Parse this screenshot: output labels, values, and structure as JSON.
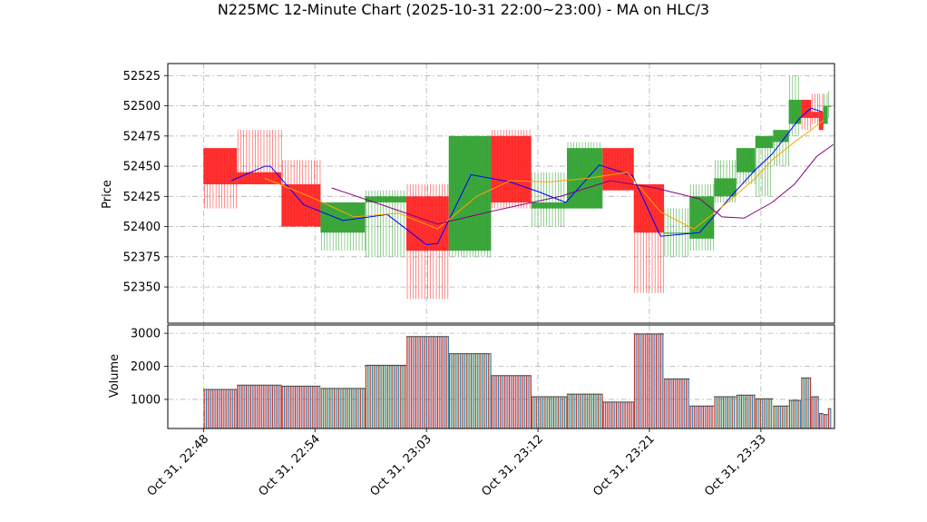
{
  "title": "N225MC 12-Minute Chart (2025-10-31 22:00~23:00) - MA on HLC/3",
  "colors": {
    "up": "#2ca02c",
    "down": "#ff2020",
    "ma_short": "#0000ff",
    "ma_mid": "#ffa500",
    "ma_long": "#800080",
    "vol_stripe_a": "#c0392b",
    "vol_stripe_b": "#2e86c1",
    "grid": "#b0b0b0"
  },
  "chart_data": [
    {
      "type": "candlestick",
      "ylabel": "Price",
      "ylim": [
        52320,
        52535
      ],
      "yticks": [
        52350,
        52375,
        52400,
        52425,
        52450,
        52475,
        52500,
        52525
      ],
      "xlim": [
        -3.2,
        56.6
      ],
      "grid": true,
      "bars": [
        {
          "x0": 0,
          "x1": 3,
          "o": 52465,
          "h": 52465,
          "l": 52415,
          "c": 52435
        },
        {
          "x0": 3,
          "x1": 7,
          "o": 52445,
          "h": 52480,
          "l": 52435,
          "c": 52435
        },
        {
          "x0": 7,
          "x1": 10.5,
          "o": 52435,
          "h": 52455,
          "l": 52400,
          "c": 52400
        },
        {
          "x0": 10.5,
          "x1": 14.5,
          "o": 52395,
          "h": 52420,
          "l": 52380,
          "c": 52420
        },
        {
          "x0": 14.5,
          "x1": 18.2,
          "o": 52420,
          "h": 52430,
          "l": 52375,
          "c": 52425
        },
        {
          "x0": 18.2,
          "x1": 22,
          "o": 52425,
          "h": 52435,
          "l": 52340,
          "c": 52380
        },
        {
          "x0": 22,
          "x1": 25.8,
          "o": 52380,
          "h": 52475,
          "l": 52375,
          "c": 52475
        },
        {
          "x0": 25.8,
          "x1": 29.4,
          "o": 52475,
          "h": 52480,
          "l": 52415,
          "c": 52420
        },
        {
          "x0": 29.4,
          "x1": 32.6,
          "o": 52415,
          "h": 52445,
          "l": 52400,
          "c": 52420
        },
        {
          "x0": 32.6,
          "x1": 35.8,
          "o": 52415,
          "h": 52470,
          "l": 52415,
          "c": 52465
        },
        {
          "x0": 35.8,
          "x1": 38.6,
          "o": 52465,
          "h": 52465,
          "l": 52430,
          "c": 52430
        },
        {
          "x0": 38.6,
          "x1": 41.3,
          "o": 52435,
          "h": 52435,
          "l": 52345,
          "c": 52395
        },
        {
          "x0": 41.3,
          "x1": 43.6,
          "o": 52395,
          "h": 52415,
          "l": 52375,
          "c": 52395
        },
        {
          "x0": 43.6,
          "x1": 45.8,
          "o": 52390,
          "h": 52435,
          "l": 52380,
          "c": 52425
        },
        {
          "x0": 45.8,
          "x1": 47.8,
          "o": 52425,
          "h": 52455,
          "l": 52420,
          "c": 52440
        },
        {
          "x0": 47.8,
          "x1": 49.5,
          "o": 52445,
          "h": 52465,
          "l": 52435,
          "c": 52465
        },
        {
          "x0": 49.5,
          "x1": 51.1,
          "o": 52465,
          "h": 52475,
          "l": 52425,
          "c": 52475
        },
        {
          "x0": 51.1,
          "x1": 52.5,
          "o": 52470,
          "h": 52480,
          "l": 52450,
          "c": 52480
        },
        {
          "x0": 52.5,
          "x1": 53.6,
          "o": 52485,
          "h": 52525,
          "l": 52475,
          "c": 52505
        },
        {
          "x0": 53.6,
          "x1": 54.5,
          "o": 52505,
          "h": 52505,
          "l": 52480,
          "c": 52490
        },
        {
          "x0": 54.5,
          "x1": 55.2,
          "o": 52495,
          "h": 52510,
          "l": 52485,
          "c": 52490
        },
        {
          "x0": 55.2,
          "x1": 55.6,
          "o": 52495,
          "h": 52510,
          "l": 52480,
          "c": 52480
        },
        {
          "x0": 55.6,
          "x1": 56.0,
          "o": 52485,
          "h": 52510,
          "l": 52485,
          "c": 52500
        },
        {
          "x0": 56.0,
          "x1": 56.3,
          "o": 52500,
          "h": 52512,
          "l": 52490,
          "c": 52500
        }
      ],
      "ma_series": [
        {
          "color_key": "ma_short",
          "x": [
            2.5,
            5.5,
            6,
            9,
            12.5,
            16.5,
            20,
            21,
            24,
            27.5,
            30,
            32.5,
            35.5,
            38.5,
            41,
            44.5,
            47.5,
            49.5,
            51,
            53.5,
            54.5,
            55.5
          ],
          "y": [
            52438,
            52450,
            52450,
            52418,
            52405,
            52410,
            52385,
            52386,
            52443,
            52437,
            52429,
            52420,
            52451,
            52442,
            52392,
            52395,
            52427,
            52447,
            52460,
            52490,
            52498,
            52495
          ]
        },
        {
          "color_key": "ma_mid",
          "x": [
            5.5,
            9.5,
            13.5,
            17.5,
            21,
            24.5,
            27.5,
            31,
            34.5,
            38,
            41,
            44,
            47,
            49.5,
            51,
            53,
            54.5,
            55.6
          ],
          "y": [
            52440,
            52425,
            52408,
            52411,
            52398,
            52425,
            52438,
            52437,
            52440,
            52445,
            52412,
            52398,
            52420,
            52440,
            52455,
            52470,
            52480,
            52488
          ]
        },
        {
          "color_key": "ma_long",
          "x": [
            11.5,
            16,
            21,
            26,
            32,
            36.5,
            40.5,
            44.5,
            46.5,
            48.5,
            51,
            53,
            55,
            56.5
          ],
          "y": [
            52432,
            52418,
            52402,
            52413,
            52425,
            52438,
            52432,
            52423,
            52408,
            52407,
            52420,
            52435,
            52458,
            52468
          ]
        }
      ]
    },
    {
      "type": "bar",
      "ylabel": "Volume",
      "ylim": [
        120,
        3250
      ],
      "yticks": [
        1000,
        2000,
        3000
      ],
      "grid": true,
      "bars": [
        {
          "x0": 0,
          "x1": 3,
          "v": 1300,
          "dir": "down"
        },
        {
          "x0": 3,
          "x1": 7,
          "v": 1430,
          "dir": "down"
        },
        {
          "x0": 7,
          "x1": 10.5,
          "v": 1400,
          "dir": "down"
        },
        {
          "x0": 10.5,
          "x1": 14.5,
          "v": 1330,
          "dir": "up"
        },
        {
          "x0": 14.5,
          "x1": 18.2,
          "v": 2030,
          "dir": "up"
        },
        {
          "x0": 18.2,
          "x1": 22,
          "v": 2900,
          "dir": "down"
        },
        {
          "x0": 22,
          "x1": 25.8,
          "v": 2380,
          "dir": "up"
        },
        {
          "x0": 25.8,
          "x1": 29.4,
          "v": 1720,
          "dir": "down"
        },
        {
          "x0": 29.4,
          "x1": 32.6,
          "v": 1080,
          "dir": "up"
        },
        {
          "x0": 32.6,
          "x1": 35.8,
          "v": 1160,
          "dir": "up"
        },
        {
          "x0": 35.8,
          "x1": 38.6,
          "v": 920,
          "dir": "down"
        },
        {
          "x0": 38.6,
          "x1": 41.3,
          "v": 2980,
          "dir": "down"
        },
        {
          "x0": 41.3,
          "x1": 43.6,
          "v": 1620,
          "dir": "down"
        },
        {
          "x0": 43.6,
          "x1": 45.8,
          "v": 800,
          "dir": "down"
        },
        {
          "x0": 45.8,
          "x1": 47.8,
          "v": 1080,
          "dir": "up"
        },
        {
          "x0": 47.8,
          "x1": 49.5,
          "v": 1130,
          "dir": "up"
        },
        {
          "x0": 49.5,
          "x1": 51.1,
          "v": 1020,
          "dir": "up"
        },
        {
          "x0": 51.1,
          "x1": 52.5,
          "v": 800,
          "dir": "up"
        },
        {
          "x0": 52.5,
          "x1": 53.6,
          "v": 970,
          "dir": "up"
        },
        {
          "x0": 53.6,
          "x1": 54.5,
          "v": 1650,
          "dir": "up"
        },
        {
          "x0": 54.5,
          "x1": 55.2,
          "v": 1080,
          "dir": "down"
        },
        {
          "x0": 55.2,
          "x1": 55.6,
          "v": 570,
          "dir": "down"
        },
        {
          "x0": 55.6,
          "x1": 56.0,
          "v": 540,
          "dir": "down"
        },
        {
          "x0": 56.0,
          "x1": 56.3,
          "v": 720,
          "dir": "down"
        }
      ]
    }
  ],
  "xticks": [
    {
      "x": 0,
      "label": "Oct 31, 22:48"
    },
    {
      "x": 10,
      "label": "Oct 31, 22:54"
    },
    {
      "x": 20,
      "label": "Oct 31, 23:03"
    },
    {
      "x": 30,
      "label": "Oct 31, 23:12"
    },
    {
      "x": 40,
      "label": "Oct 31, 23:21"
    },
    {
      "x": 50,
      "label": "Oct 31, 23:33"
    },
    {
      "x": 60,
      "label": ""
    }
  ]
}
